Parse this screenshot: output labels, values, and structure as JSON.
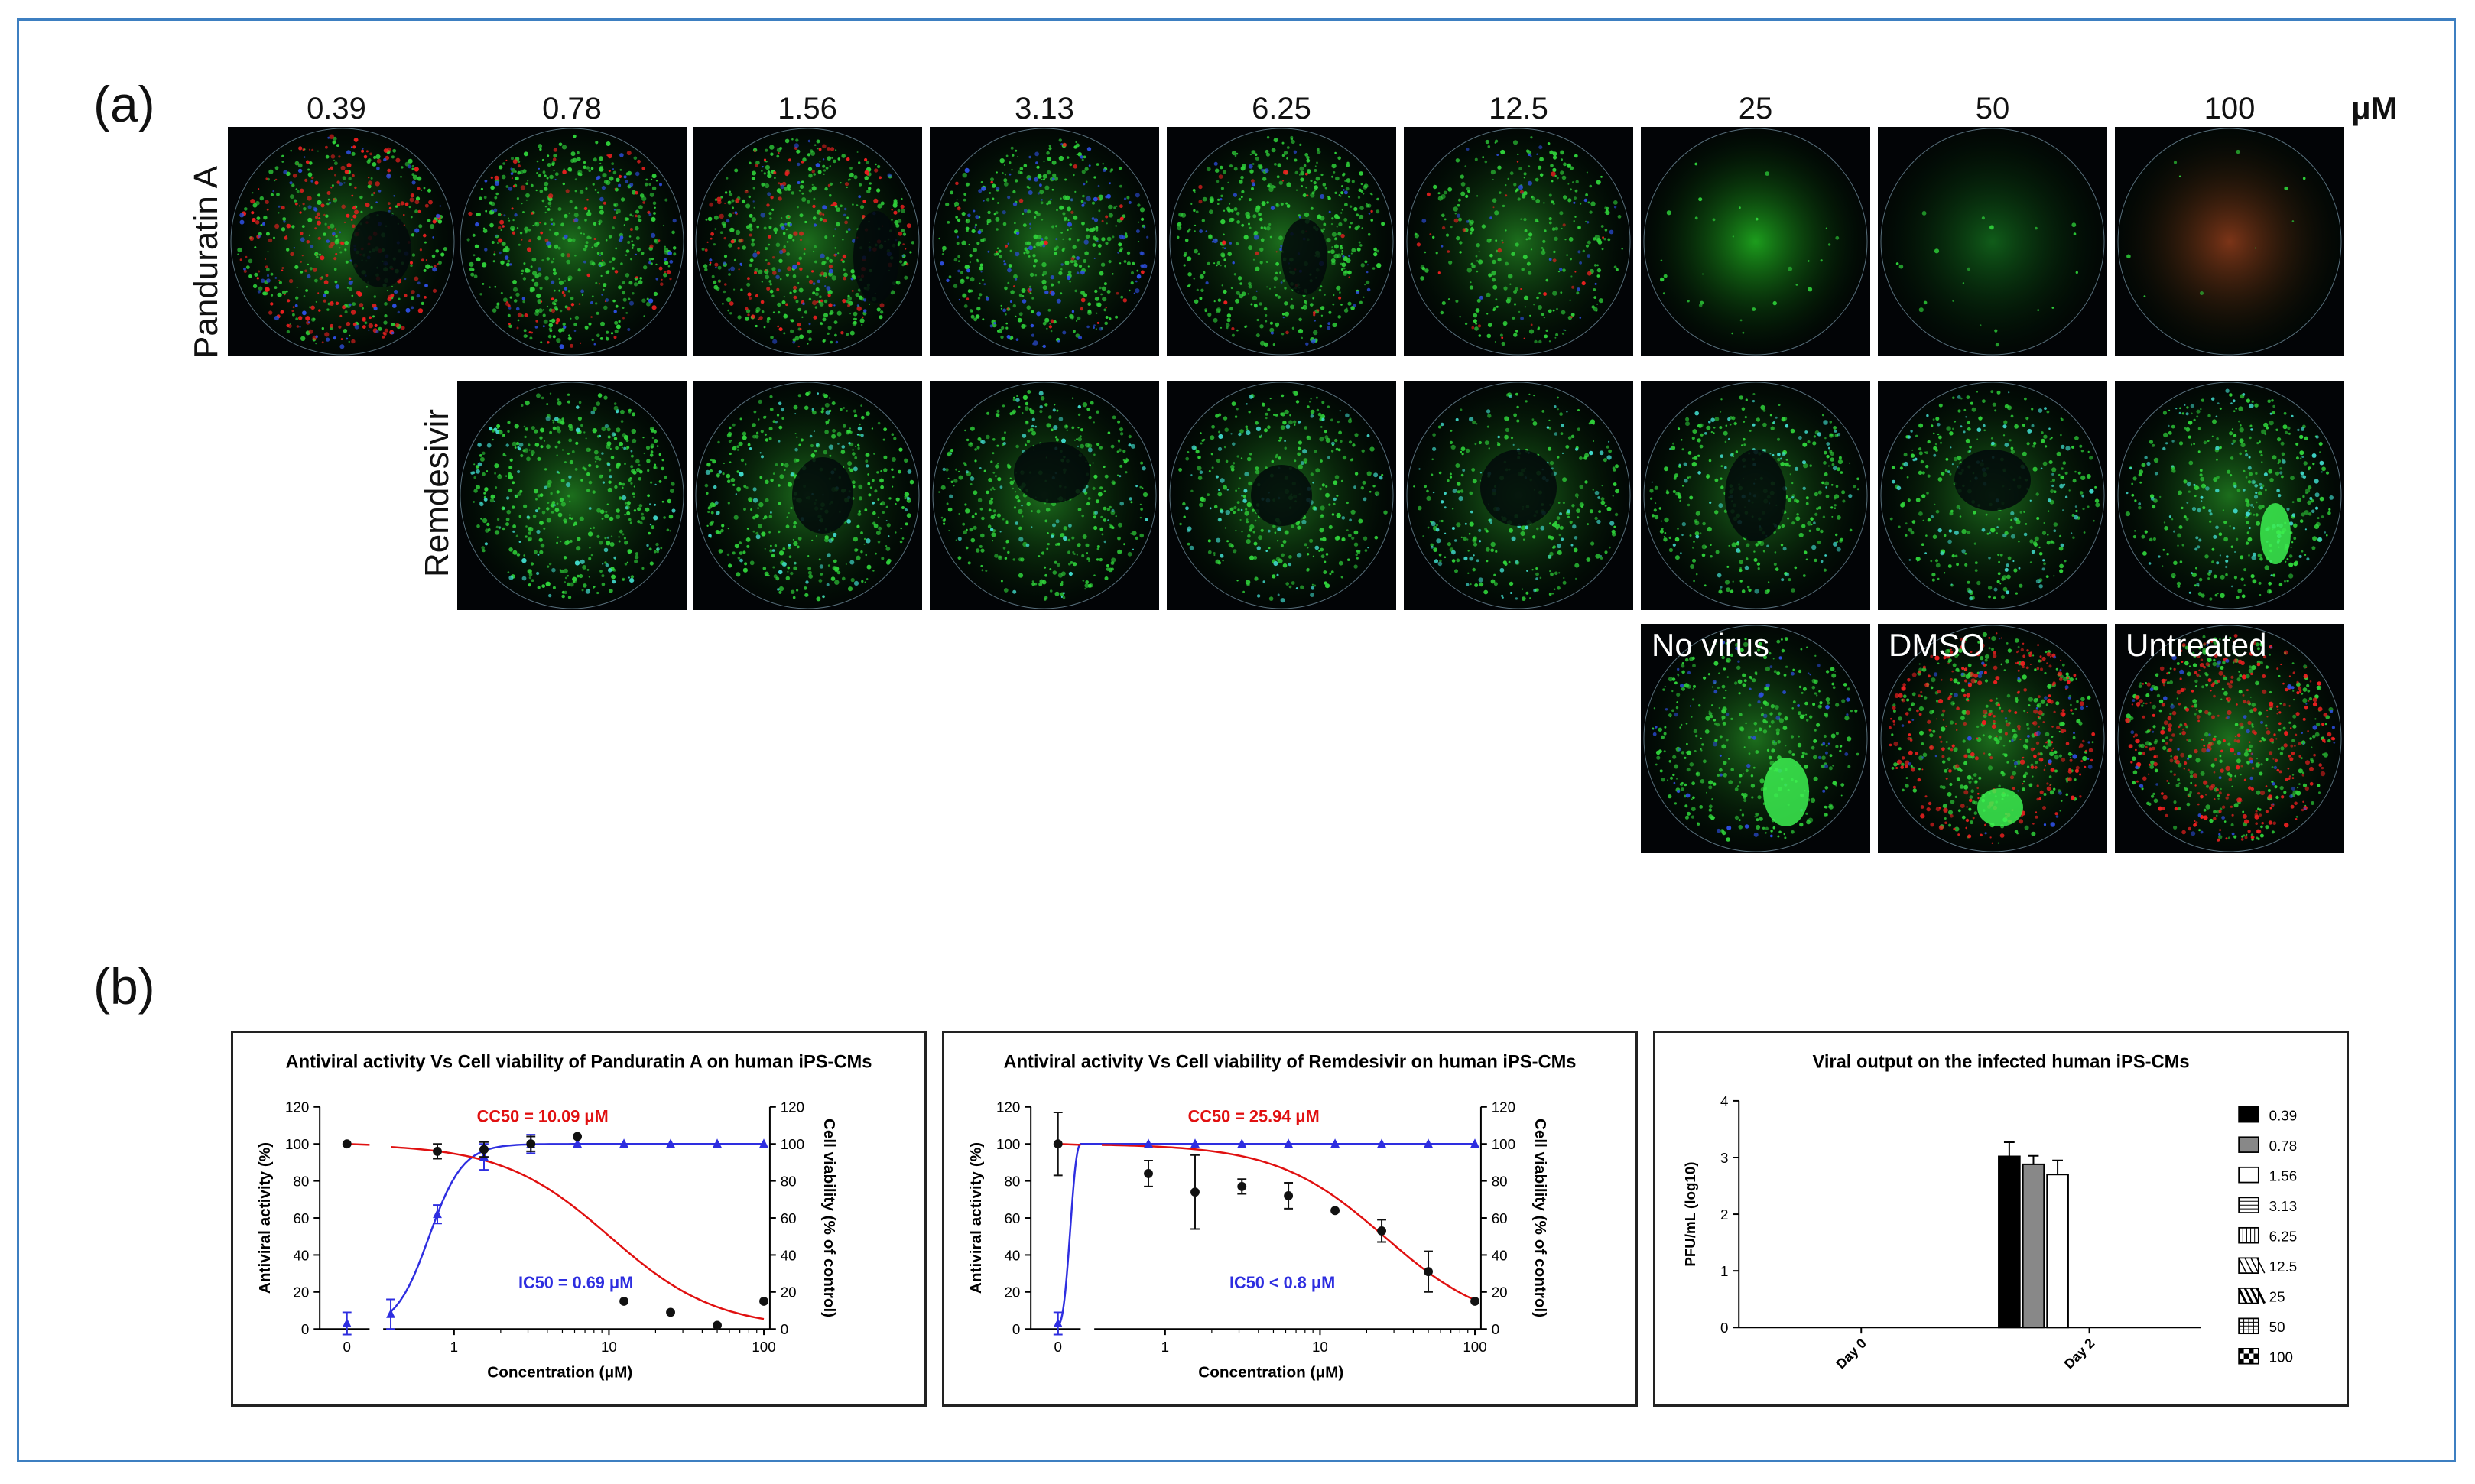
{
  "panel_a": {
    "label": "(a)",
    "concentrations": [
      "0.39",
      "0.78",
      "1.56",
      "3.13",
      "6.25",
      "12.5",
      "25",
      "50",
      "100"
    ],
    "unit": "μM",
    "rows": [
      "Panduratin A",
      "Remdesivir"
    ],
    "controls": [
      "No virus",
      "DMSO",
      "Untreated"
    ]
  },
  "panel_b": {
    "label": "(b)"
  },
  "colors": {
    "antiviral": "#2e2ee0",
    "viability": "#e01010",
    "frame": "#3d7fc1"
  },
  "chart_data": [
    {
      "type": "scatter",
      "title": "Antiviral activity Vs Cell viability of Panduratin  A on human iPS-CMs",
      "xlabel": "Concentration (μM)",
      "ylabel": "Antiviral activity (%)",
      "y2label": "Cell viability (% of control)",
      "annotation_cc50": "CC50 = 10.09 μM",
      "annotation_ic50": "IC50 = 0.69 μM",
      "ylim": [
        0,
        120
      ],
      "yticks": [
        "0",
        "20",
        "40",
        "60",
        "80",
        "100",
        "120"
      ],
      "xticks": [
        "0",
        "1",
        "10",
        "100"
      ],
      "series": [
        {
          "name": "Antiviral activity",
          "points": [
            {
              "x": 0,
              "y": 3,
              "err": 6
            },
            {
              "x": 0.39,
              "y": 8,
              "err": 8
            },
            {
              "x": 0.78,
              "y": 62,
              "err": 5
            },
            {
              "x": 1.56,
              "y": 93,
              "err": 7
            },
            {
              "x": 3.13,
              "y": 100,
              "err": 5
            },
            {
              "x": 6.25,
              "y": 100
            },
            {
              "x": 12.5,
              "y": 100
            },
            {
              "x": 25,
              "y": 100
            },
            {
              "x": 50,
              "y": 100
            },
            {
              "x": 100,
              "y": 100
            }
          ],
          "fit": "ic",
          "ic50": 0.69
        },
        {
          "name": "Cell viability",
          "points": [
            {
              "x": 0,
              "y": 100
            },
            {
              "x": 0.78,
              "y": 96,
              "err": 4
            },
            {
              "x": 1.56,
              "y": 97,
              "err": 4
            },
            {
              "x": 3.13,
              "y": 100,
              "err": 4
            },
            {
              "x": 6.25,
              "y": 104
            },
            {
              "x": 12.5,
              "y": 15
            },
            {
              "x": 25,
              "y": 9
            },
            {
              "x": 50,
              "y": 2
            },
            {
              "x": 100,
              "y": 15
            }
          ],
          "fit": "cc",
          "cc50": 10.09
        }
      ]
    },
    {
      "type": "scatter",
      "title": "Antiviral activity Vs Cell viability of Remdesivir on human iPS-CMs",
      "xlabel": "Concentration (μM)",
      "ylabel": "Antiviral activity (%)",
      "y2label": "Cell viability (% of control)",
      "annotation_cc50": "CC50 = 25.94 μM",
      "annotation_ic50": "IC50 < 0.8 μM",
      "ylim": [
        0,
        120
      ],
      "yticks": [
        "0",
        "20",
        "40",
        "60",
        "80",
        "100",
        "120"
      ],
      "xticks": [
        "0",
        "1",
        "10",
        "100"
      ],
      "series": [
        {
          "name": "Antiviral activity",
          "points": [
            {
              "x": 0,
              "y": 3,
              "err": 6
            },
            {
              "x": 0.78,
              "y": 100
            },
            {
              "x": 1.56,
              "y": 100
            },
            {
              "x": 3.13,
              "y": 100
            },
            {
              "x": 6.25,
              "y": 100
            },
            {
              "x": 12.5,
              "y": 100
            },
            {
              "x": 25,
              "y": 100
            },
            {
              "x": 50,
              "y": 100
            },
            {
              "x": 100,
              "y": 100
            }
          ],
          "fit": "flat"
        },
        {
          "name": "Cell viability",
          "points": [
            {
              "x": 0,
              "y": 100,
              "err": 17
            },
            {
              "x": 0.78,
              "y": 84,
              "err": 7
            },
            {
              "x": 1.56,
              "y": 74,
              "err": 20
            },
            {
              "x": 3.13,
              "y": 77,
              "err": 4
            },
            {
              "x": 6.25,
              "y": 72,
              "err": 7
            },
            {
              "x": 12.5,
              "y": 64
            },
            {
              "x": 25,
              "y": 53,
              "err": 6
            },
            {
              "x": 50,
              "y": 31,
              "err": 11
            },
            {
              "x": 100,
              "y": 15
            }
          ],
          "fit": "cc",
          "cc50": 25.94
        }
      ]
    },
    {
      "type": "bar",
      "title": "Viral output on the infected human iPS-CMs",
      "ylabel": "PFU/mL (log10)",
      "categories": [
        "Day 0",
        "Day 2"
      ],
      "ylim": [
        0,
        4
      ],
      "yticks": [
        "0",
        "1",
        "2",
        "3",
        "4"
      ],
      "legend": [
        "0.39",
        "0.78",
        "1.56",
        "3.13",
        "6.25",
        "12.5",
        "25",
        "50",
        "100"
      ],
      "series": [
        {
          "name": "0.39",
          "values": [
            0,
            3.02
          ],
          "err": [
            0,
            0.25
          ]
        },
        {
          "name": "0.78",
          "values": [
            0,
            2.88
          ],
          "err": [
            0,
            0.15
          ]
        },
        {
          "name": "1.56",
          "values": [
            0,
            2.7
          ],
          "err": [
            0,
            0.25
          ]
        },
        {
          "name": "3.13",
          "values": [
            0,
            0
          ],
          "err": [
            0,
            0
          ]
        },
        {
          "name": "6.25",
          "values": [
            0,
            0
          ],
          "err": [
            0,
            0
          ]
        },
        {
          "name": "12.5",
          "values": [
            0,
            0
          ],
          "err": [
            0,
            0
          ]
        },
        {
          "name": "25",
          "values": [
            0,
            0
          ],
          "err": [
            0,
            0
          ]
        },
        {
          "name": "50",
          "values": [
            0,
            0
          ],
          "err": [
            0,
            0
          ]
        },
        {
          "name": "100",
          "values": [
            0,
            0
          ],
          "err": [
            0,
            0
          ]
        }
      ]
    }
  ]
}
